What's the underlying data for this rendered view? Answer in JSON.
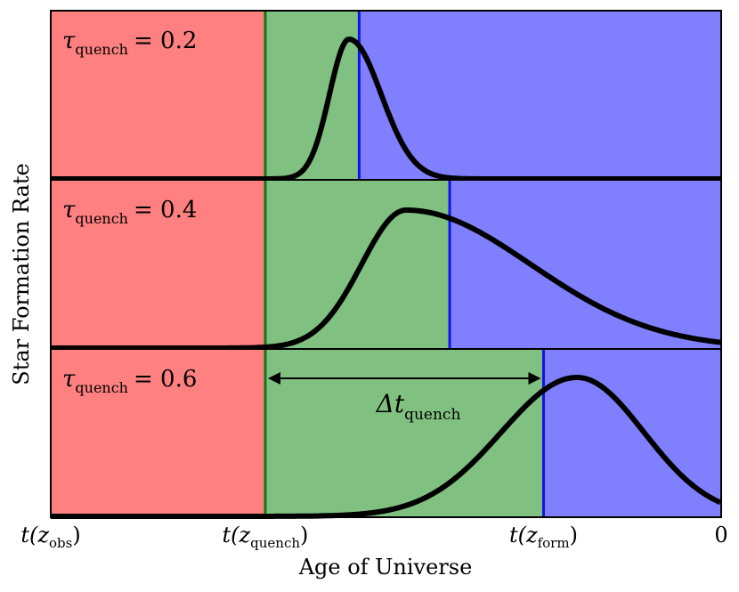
{
  "chart_data": {
    "type": "line",
    "ylabel": "Star Formation Rate",
    "xlabel": "Age of Universe",
    "x_ticks": [
      {
        "label": "t(z",
        "sub": "obs",
        "tail": ")"
      },
      {
        "label": "t(z",
        "sub": "quench",
        "tail": ")"
      },
      {
        "label": "t(z",
        "sub": "form",
        "tail": ")"
      },
      {
        "label": "0",
        "sub": "",
        "tail": ""
      }
    ],
    "xlim": [
      0,
      1
    ],
    "t_quench_fraction": 0.32,
    "regions": {
      "pre_quench": "#ff8080",
      "quenching": "#80c080",
      "post_formation": "#8080ff"
    },
    "line_colors": {
      "quench": "#117711",
      "form": "#1111ee",
      "curve": "#000000"
    },
    "panels": [
      {
        "label": "τ",
        "sub": "quench",
        "rhs": "= 0.2",
        "t_form_fraction": 0.46,
        "peak_fraction": 0.445
      },
      {
        "label": "τ",
        "sub": "quench",
        "rhs": "= 0.4",
        "t_form_fraction": 0.595,
        "peak_fraction": 0.53
      },
      {
        "label": "τ",
        "sub": "quench",
        "rhs": "= 0.6",
        "t_form_fraction": 0.735,
        "peak_fraction": 0.785
      }
    ],
    "annotation": {
      "label": "Δt",
      "sub": "quench"
    }
  }
}
